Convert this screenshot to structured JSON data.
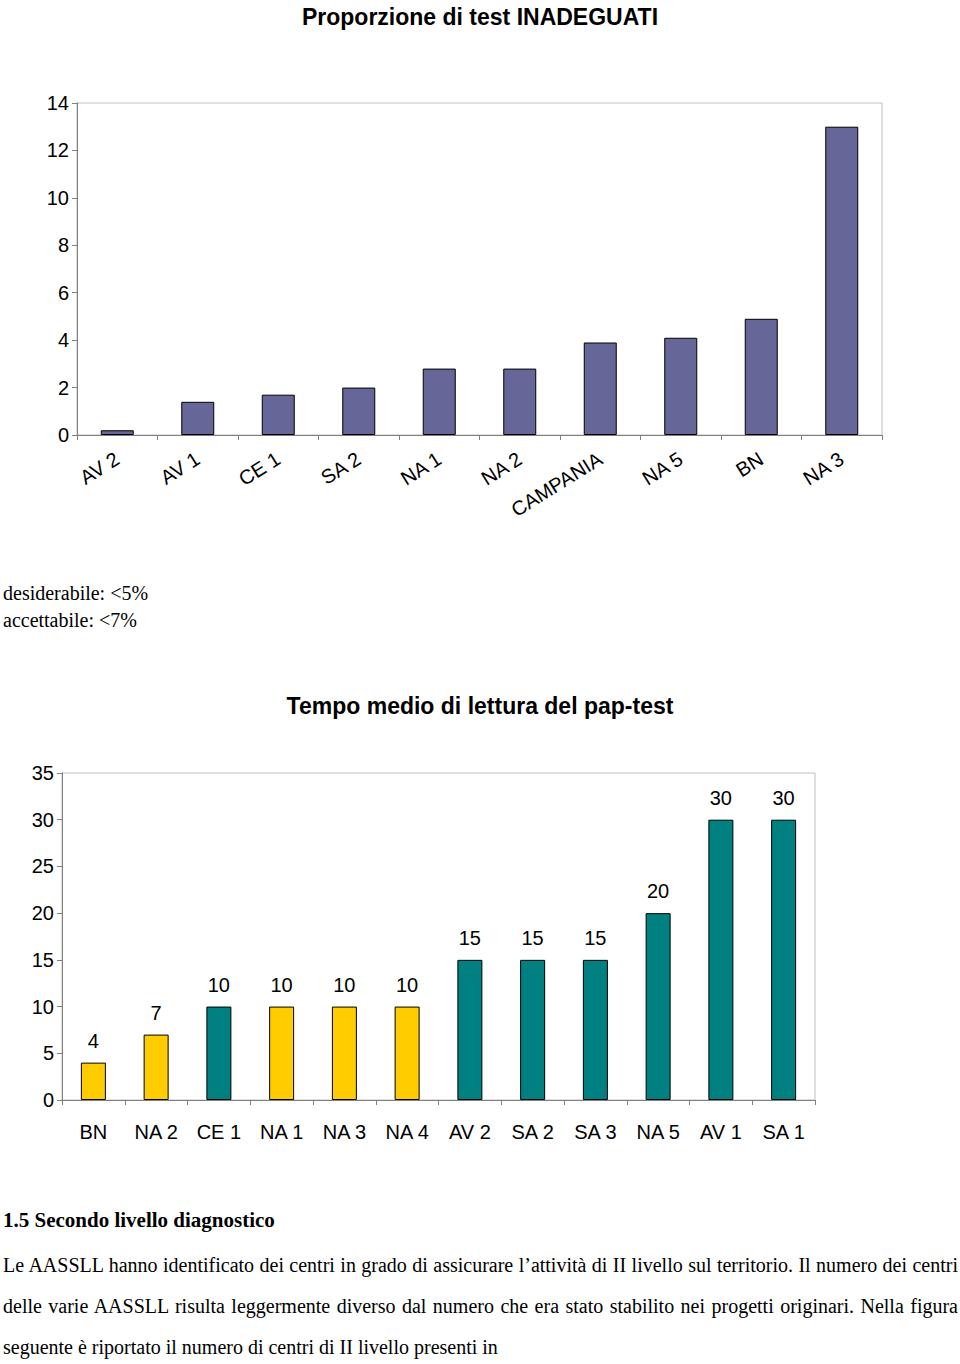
{
  "chart_data": [
    {
      "type": "bar",
      "title": "Proporzione di test INADEGUATI",
      "categories": [
        "AV 2",
        "AV 1",
        "CE 1",
        "SA 2",
        "NA 1",
        "NA 2",
        "CAMPANIA",
        "NA 5",
        "BN",
        "NA 3"
      ],
      "values": [
        0.2,
        1.4,
        1.7,
        2.0,
        2.8,
        2.8,
        3.9,
        4.1,
        4.9,
        13.0
      ],
      "color": "#666699",
      "ylim": [
        0,
        14
      ],
      "yticks": [
        0,
        2,
        4,
        6,
        8,
        10,
        12,
        14
      ],
      "grid": false,
      "annotations": [
        "desiderabile: <5%",
        "accettabile: <7%"
      ]
    },
    {
      "type": "bar",
      "title": "Tempo medio di lettura del pap-test",
      "categories": [
        "BN",
        "NA 2",
        "CE 1",
        "NA 1",
        "NA 3",
        "NA 4",
        "AV 2",
        "SA 2",
        "SA 3",
        "NA 5",
        "AV 1",
        "SA 1"
      ],
      "values": [
        4,
        7,
        10,
        10,
        10,
        10,
        15,
        15,
        15,
        20,
        30,
        30
      ],
      "colors": [
        "#ffcc00",
        "#ffcc00",
        "#008080",
        "#ffcc00",
        "#ffcc00",
        "#ffcc00",
        "#008080",
        "#008080",
        "#008080",
        "#008080",
        "#008080",
        "#008080"
      ],
      "ylim": [
        0,
        35
      ],
      "yticks": [
        0,
        5,
        10,
        15,
        20,
        25,
        30,
        35
      ],
      "grid": false,
      "data_labels": true
    }
  ],
  "document": {
    "heading": "1.5 Secondo livello diagnostico",
    "paragraph": "Le AASSLL hanno identificato dei centri in grado di assicurare l’attività di II livello sul territorio. Il numero dei centri delle varie AASSLL risulta leggermente diverso dal numero che era stato stabilito nei progetti originari. Nella figura seguente è riportato il numero di centri di II livello presenti in"
  }
}
